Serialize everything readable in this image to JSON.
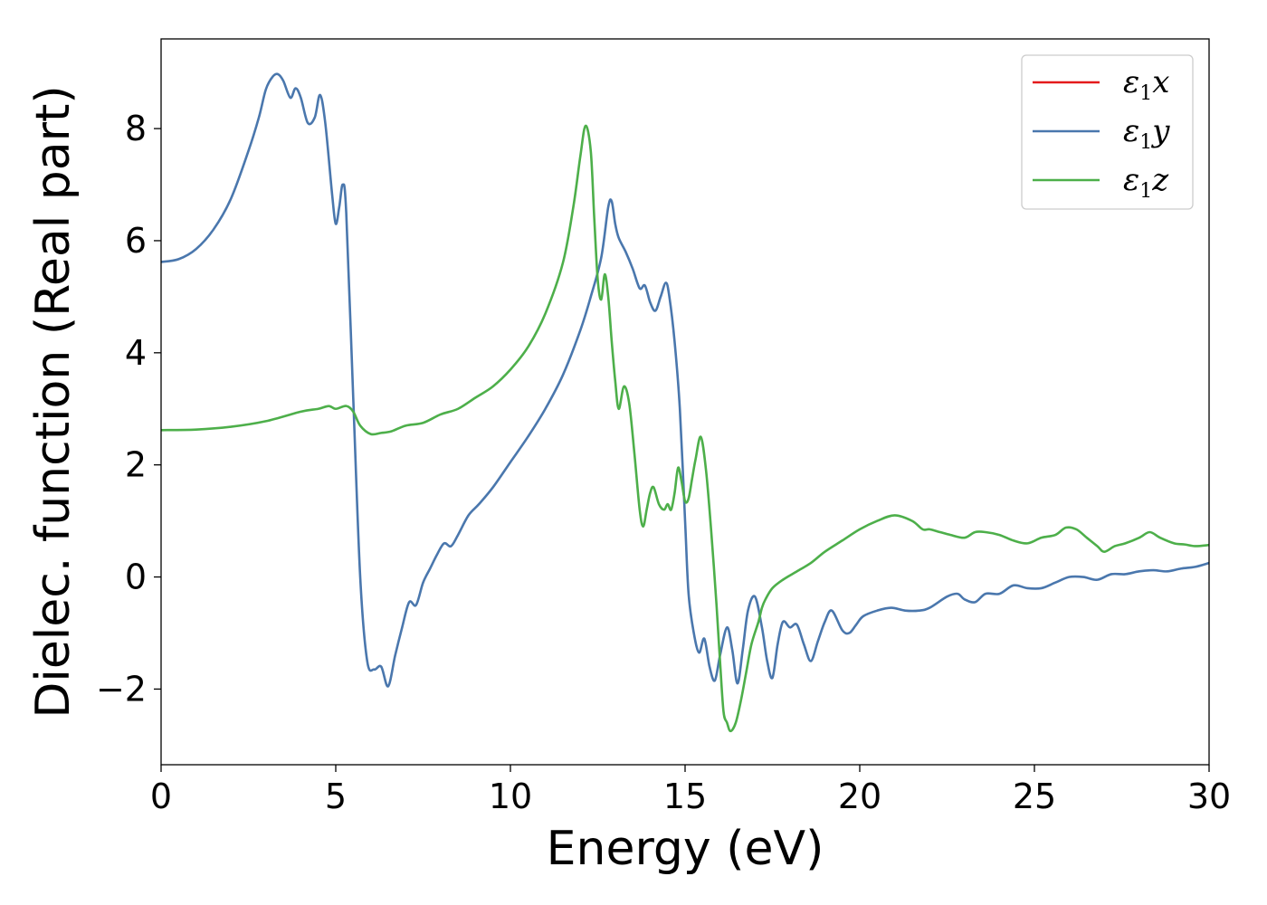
{
  "chart_data": {
    "type": "line",
    "title": "",
    "xlabel": "Energy (eV)",
    "ylabel": "Dielec. function (Real part)",
    "xlim": [
      0,
      30
    ],
    "ylim": [
      -3.35,
      9.6
    ],
    "xticks": [
      0,
      5,
      10,
      15,
      20,
      25,
      30
    ],
    "yticks": [
      -2,
      0,
      2,
      4,
      6,
      8
    ],
    "xtick_labels": [
      "0",
      "5",
      "10",
      "15",
      "20",
      "25",
      "30"
    ],
    "ytick_labels": [
      "−2",
      "0",
      "2",
      "4",
      "6",
      "8"
    ],
    "grid": false,
    "legend_position": "top-right",
    "series": [
      {
        "name": "ε₁x",
        "legend_main": "ε",
        "legend_sub": "1",
        "legend_var": "x",
        "color": "#e41a1c",
        "x": [],
        "y": []
      },
      {
        "name": "ε₁y",
        "legend_main": "ε",
        "legend_sub": "1",
        "legend_var": "y",
        "color": "#4a77ad",
        "x": [
          0,
          0.5,
          1.0,
          1.5,
          2.0,
          2.5,
          2.8,
          3.0,
          3.2,
          3.35,
          3.5,
          3.7,
          3.85,
          4.0,
          4.2,
          4.4,
          4.55,
          4.7,
          4.9,
          5.0,
          5.1,
          5.2,
          5.3,
          5.5,
          5.7,
          5.9,
          6.1,
          6.3,
          6.5,
          6.7,
          6.9,
          7.1,
          7.3,
          7.5,
          7.7,
          7.9,
          8.1,
          8.3,
          8.5,
          8.8,
          9.1,
          9.5,
          10.0,
          10.5,
          11.0,
          11.5,
          12.0,
          12.3,
          12.6,
          12.8,
          12.9,
          13.0,
          13.1,
          13.3,
          13.5,
          13.7,
          13.85,
          14.0,
          14.15,
          14.3,
          14.45,
          14.55,
          14.7,
          14.85,
          15.0,
          15.1,
          15.25,
          15.4,
          15.55,
          15.7,
          15.85,
          16.0,
          16.2,
          16.35,
          16.5,
          16.65,
          16.8,
          17.0,
          17.2,
          17.35,
          17.5,
          17.65,
          17.8,
          18.0,
          18.2,
          18.4,
          18.6,
          18.8,
          19.0,
          19.2,
          19.5,
          19.7,
          19.9,
          20.1,
          20.5,
          20.9,
          21.3,
          21.7,
          22.0,
          22.5,
          22.8,
          23.0,
          23.3,
          23.6,
          24.0,
          24.4,
          24.8,
          25.2,
          25.6,
          26.0,
          26.4,
          26.8,
          27.2,
          27.6,
          28.0,
          28.4,
          28.8,
          29.2,
          29.6,
          30.0
        ],
        "y": [
          5.62,
          5.67,
          5.85,
          6.2,
          6.75,
          7.6,
          8.2,
          8.7,
          8.93,
          8.97,
          8.85,
          8.55,
          8.72,
          8.55,
          8.1,
          8.2,
          8.6,
          8.1,
          6.8,
          6.3,
          6.6,
          7.0,
          6.5,
          3.2,
          0.0,
          -1.5,
          -1.65,
          -1.6,
          -1.95,
          -1.4,
          -0.9,
          -0.45,
          -0.5,
          -0.1,
          0.15,
          0.4,
          0.6,
          0.55,
          0.75,
          1.1,
          1.3,
          1.6,
          2.05,
          2.5,
          3.0,
          3.6,
          4.4,
          5.0,
          5.7,
          6.6,
          6.7,
          6.3,
          6.05,
          5.8,
          5.5,
          5.15,
          5.2,
          4.9,
          4.75,
          5.0,
          5.25,
          5.0,
          4.2,
          3.0,
          1.0,
          -0.3,
          -1.0,
          -1.35,
          -1.1,
          -1.6,
          -1.85,
          -1.4,
          -0.9,
          -1.3,
          -1.9,
          -1.3,
          -0.6,
          -0.35,
          -0.9,
          -1.5,
          -1.8,
          -1.2,
          -0.8,
          -0.9,
          -0.85,
          -1.2,
          -1.5,
          -1.15,
          -0.8,
          -0.6,
          -0.95,
          -1.0,
          -0.85,
          -0.7,
          -0.6,
          -0.55,
          -0.6,
          -0.6,
          -0.55,
          -0.35,
          -0.3,
          -0.4,
          -0.45,
          -0.3,
          -0.3,
          -0.15,
          -0.2,
          -0.2,
          -0.1,
          0.0,
          0.0,
          -0.05,
          0.05,
          0.05,
          0.1,
          0.12,
          0.1,
          0.15,
          0.18,
          0.25
        ]
      },
      {
        "name": "ε₁z",
        "legend_main": "ε",
        "legend_sub": "1",
        "legend_var": "z",
        "color": "#4daf4a",
        "x": [
          0,
          1.0,
          2.0,
          3.0,
          4.0,
          4.5,
          4.8,
          5.0,
          5.3,
          5.5,
          5.7,
          6.0,
          6.3,
          6.6,
          7.0,
          7.5,
          8.0,
          8.5,
          9.0,
          9.5,
          10.0,
          10.5,
          11.0,
          11.5,
          11.8,
          12.0,
          12.15,
          12.3,
          12.4,
          12.5,
          12.6,
          12.7,
          12.8,
          12.9,
          13.0,
          13.1,
          13.25,
          13.4,
          13.55,
          13.7,
          13.8,
          13.9,
          14.0,
          14.1,
          14.25,
          14.4,
          14.5,
          14.6,
          14.7,
          14.8,
          14.9,
          15.0,
          15.1,
          15.2,
          15.3,
          15.45,
          15.6,
          15.75,
          15.9,
          16.0,
          16.1,
          16.2,
          16.3,
          16.45,
          16.6,
          16.75,
          16.9,
          17.1,
          17.2,
          17.3,
          17.5,
          17.8,
          18.2,
          18.6,
          19.0,
          19.5,
          20.0,
          20.5,
          21.0,
          21.5,
          21.8,
          22.0,
          22.3,
          22.6,
          23.0,
          23.3,
          23.6,
          24.0,
          24.4,
          24.8,
          25.2,
          25.6,
          25.9,
          26.2,
          26.5,
          26.8,
          27.0,
          27.3,
          27.6,
          28.0,
          28.3,
          28.6,
          29.0,
          29.3,
          29.6,
          30.0
        ],
        "y": [
          2.62,
          2.63,
          2.68,
          2.78,
          2.95,
          3.0,
          3.05,
          3.0,
          3.05,
          2.95,
          2.7,
          2.55,
          2.57,
          2.6,
          2.7,
          2.75,
          2.9,
          3.0,
          3.2,
          3.4,
          3.7,
          4.1,
          4.7,
          5.6,
          6.6,
          7.5,
          8.05,
          7.6,
          6.4,
          5.3,
          4.95,
          5.4,
          5.0,
          4.2,
          3.5,
          3.0,
          3.4,
          3.1,
          2.2,
          1.2,
          0.9,
          1.2,
          1.5,
          1.6,
          1.3,
          1.2,
          1.3,
          1.2,
          1.5,
          1.95,
          1.7,
          1.35,
          1.4,
          1.75,
          2.1,
          2.5,
          1.9,
          0.8,
          -0.5,
          -1.5,
          -2.4,
          -2.6,
          -2.75,
          -2.6,
          -2.2,
          -1.7,
          -1.2,
          -0.8,
          -0.55,
          -0.4,
          -0.2,
          -0.05,
          0.1,
          0.25,
          0.45,
          0.65,
          0.85,
          1.0,
          1.1,
          1.0,
          0.85,
          0.85,
          0.8,
          0.75,
          0.7,
          0.8,
          0.8,
          0.75,
          0.65,
          0.6,
          0.7,
          0.75,
          0.88,
          0.85,
          0.7,
          0.55,
          0.45,
          0.55,
          0.6,
          0.7,
          0.8,
          0.7,
          0.6,
          0.58,
          0.55,
          0.57
        ]
      }
    ]
  }
}
